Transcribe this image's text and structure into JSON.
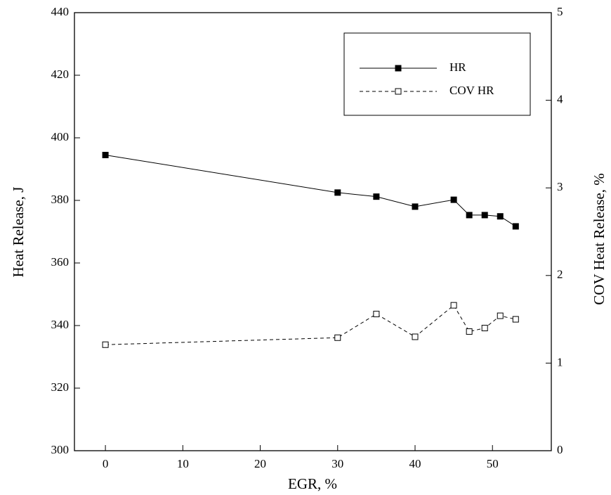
{
  "chart_data": {
    "type": "line",
    "x_label": "EGR, %",
    "y_label": "Heat Release, J",
    "y2_label": "COV Heat Release, %",
    "x": [
      0,
      30,
      35,
      40,
      45,
      47,
      49,
      51,
      53
    ],
    "series": [
      {
        "name": "HR",
        "color": "#000000",
        "dash": "solid",
        "marker": "filled-square",
        "values": [
          394.5,
          382.5,
          381.2,
          378,
          380.2,
          375.3,
          375.3,
          374.9,
          371.7
        ]
      },
      {
        "name": "COV HR",
        "color": "#000000",
        "dash": "dashed",
        "marker": "open-square",
        "axis": "y2",
        "values": [
          1.21,
          1.29,
          1.56,
          1.3,
          1.66,
          1.36,
          1.4,
          1.54,
          1.5
        ]
      }
    ],
    "xlim": [
      -4,
      57.6
    ],
    "xticks": [
      0,
      10,
      20,
      30,
      40,
      50
    ],
    "ylim": [
      300,
      440
    ],
    "yticks": [
      300,
      320,
      340,
      360,
      380,
      400,
      420,
      440
    ],
    "y2lim": [
      0,
      5
    ],
    "y2ticks": [
      0,
      1,
      2,
      3,
      4,
      5
    ],
    "legend": "top-right",
    "grid": false
  }
}
